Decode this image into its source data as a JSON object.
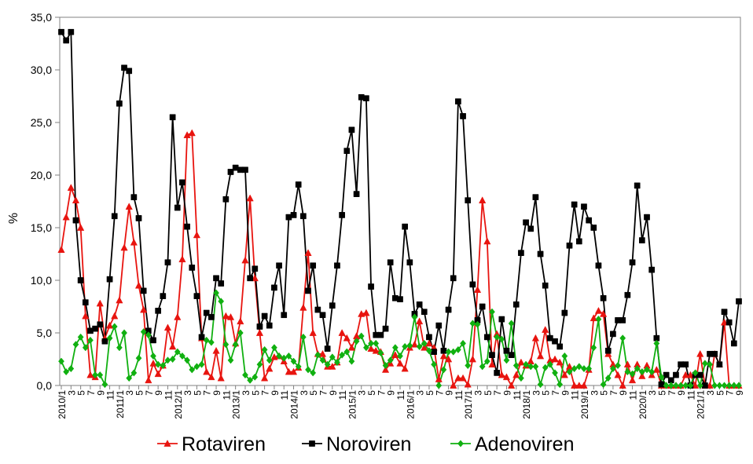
{
  "chart_data": {
    "type": "line",
    "ylabel": "%",
    "categories": [
      "2010/1",
      null,
      "3",
      null,
      "5",
      null,
      "7",
      null,
      "9",
      null,
      "11",
      null,
      "2011/1",
      null,
      "3",
      null,
      "5",
      null,
      "7",
      null,
      "9",
      null,
      "11",
      null,
      "2012/1",
      null,
      "3",
      null,
      "5",
      null,
      "7",
      null,
      "9",
      null,
      "11",
      null,
      "2013/1",
      null,
      "3",
      null,
      "5",
      null,
      "7",
      null,
      "9",
      null,
      "11",
      null,
      "2014/1",
      null,
      "3",
      null,
      "5",
      null,
      "7",
      null,
      "9",
      null,
      "11",
      null,
      "2015/1",
      null,
      "3",
      null,
      "5",
      null,
      "7",
      null,
      "9",
      null,
      "11",
      null,
      "2016/1",
      null,
      "3",
      null,
      "5",
      null,
      "7",
      null,
      "9",
      null,
      "11",
      null,
      "2017/1",
      null,
      "3",
      null,
      "5",
      null,
      "7",
      null,
      "9",
      null,
      "11",
      null,
      "2018/1",
      null,
      "3",
      null,
      "5",
      null,
      "7",
      null,
      "9",
      null,
      "11",
      null,
      "2019/1",
      null,
      "3",
      null,
      "5",
      null,
      "7",
      null,
      "9",
      null,
      "11",
      null,
      "2020/1",
      null,
      "3",
      null,
      "5",
      null,
      "7",
      null,
      "9",
      null,
      "11",
      null,
      "2021/1",
      null,
      "3",
      null,
      "5",
      null,
      "7",
      null,
      "9"
    ],
    "series": [
      {
        "name": "Rotaviren",
        "color": "#e8140f",
        "marker": "triangle",
        "values": [
          12.9,
          16,
          18.8,
          17.6,
          15,
          6.6,
          1,
          0.8,
          7.8,
          4.5,
          5.7,
          6.6,
          8.1,
          13.1,
          17,
          13.6,
          9.5,
          7.2,
          0.5,
          2.1,
          1.1,
          1.9,
          5.5,
          3.7,
          6.5,
          12,
          23.8,
          24,
          14.3,
          4.5,
          1.3,
          0.8,
          3.3,
          0.7,
          6.6,
          6.5,
          4,
          6.1,
          11.9,
          17.8,
          10.2,
          5,
          0.7,
          1.6,
          2.7,
          2.8,
          2.3,
          1.3,
          1.3,
          1.7,
          7.4,
          12.6,
          5,
          3,
          3,
          1.8,
          1.8,
          2.2,
          5,
          4.5,
          3.6,
          4.7,
          6.8,
          6.9,
          3.5,
          3.3,
          3.2,
          1.5,
          2.1,
          2.9,
          2.1,
          1.6,
          3.6,
          3.9,
          6.1,
          3.6,
          4,
          3.6,
          0.6,
          2.8,
          2.5,
          0,
          0.7,
          0.7,
          0.1,
          2.5,
          9.1,
          17.6,
          13.7,
          2,
          4.9,
          1,
          0.8,
          0,
          1,
          2.2,
          1.9,
          2.3,
          4.5,
          2.8,
          5.3,
          2.4,
          2.5,
          2.2,
          1,
          1.8,
          0,
          0,
          0,
          1.5,
          6.4,
          7.1,
          6.8,
          3,
          2,
          1,
          0,
          2,
          0.5,
          2,
          0.9,
          1.9,
          1,
          1.5,
          0,
          0,
          0,
          0,
          0,
          1,
          1,
          0,
          3,
          0,
          0,
          3,
          2,
          6,
          0,
          0,
          0
        ]
      },
      {
        "name": "Noroviren",
        "color": "#000000",
        "marker": "square",
        "values": [
          33.6,
          32.8,
          33.6,
          15.7,
          10,
          7.9,
          5.2,
          5.4,
          5.8,
          4.2,
          10.1,
          16.1,
          26.8,
          30.2,
          29.9,
          17.9,
          15.9,
          9,
          5.2,
          4.3,
          7.1,
          8.5,
          11.7,
          25.5,
          16.9,
          19.3,
          15.1,
          11.2,
          8.5,
          4.6,
          6.9,
          6.5,
          10.2,
          9.7,
          17.7,
          20.3,
          20.7,
          20.5,
          20.5,
          10.2,
          11.1,
          5.6,
          6.6,
          5.7,
          9.3,
          11.4,
          6.7,
          16,
          16.2,
          19.1,
          16.1,
          9,
          11.4,
          7.2,
          6.7,
          3.5,
          7.6,
          11.4,
          16.2,
          22.3,
          24.3,
          18.2,
          27.4,
          27.3,
          9.4,
          4.8,
          4.8,
          5.4,
          11.7,
          8.3,
          8.2,
          15.1,
          11.7,
          6.8,
          7.7,
          7,
          4.6,
          3.2,
          5.7,
          3.3,
          7.2,
          10.2,
          27,
          25.6,
          17.6,
          9.6,
          6.2,
          7.5,
          4.6,
          2.9,
          1.2,
          6.3,
          3.3,
          2.9,
          7.7,
          12.6,
          15.5,
          14.9,
          17.9,
          12.5,
          9.5,
          4.5,
          4.2,
          3.7,
          6.9,
          13.3,
          17.2,
          13.7,
          17,
          15.7,
          15,
          11.4,
          8.3,
          3.3,
          4.9,
          6.2,
          6.2,
          8.6,
          11.7,
          19,
          13.8,
          16,
          11,
          4.5,
          0.1,
          1,
          0.5,
          1,
          2,
          2,
          0,
          1,
          1,
          0,
          3,
          3,
          2,
          7,
          6,
          4,
          8
        ]
      },
      {
        "name": "Adenoviren",
        "color": "#10b010",
        "marker": "diamond",
        "values": [
          2.3,
          1.3,
          1.6,
          3.9,
          4.6,
          3.6,
          4.3,
          1,
          1,
          0.1,
          4.5,
          5.6,
          3.6,
          5,
          0.7,
          1.2,
          2.6,
          5.1,
          4.8,
          2.8,
          2,
          1.9,
          2.4,
          2.5,
          3.2,
          2.8,
          2.4,
          1.5,
          1.8,
          2,
          4.3,
          4.1,
          8.8,
          8,
          3.9,
          2.4,
          3.9,
          5,
          1,
          0.5,
          0.8,
          2,
          3.4,
          2.4,
          3.6,
          2.8,
          2.6,
          2.8,
          2.3,
          1.8,
          4.6,
          1.5,
          1.2,
          2.9,
          2.4,
          2,
          2.7,
          2.2,
          2.9,
          3.2,
          2.3,
          4.2,
          4.7,
          3.6,
          4,
          4,
          3.1,
          1.9,
          2.4,
          3.6,
          2.8,
          3.7,
          3.8,
          6.5,
          3.7,
          4,
          3.3,
          2,
          0,
          1.5,
          3.2,
          3.2,
          3.4,
          4,
          1.9,
          5.9,
          5.8,
          1.8,
          2.3,
          7,
          4.6,
          4.4,
          2.4,
          5.9,
          1.9,
          0.7,
          2,
          1.8,
          1.8,
          0.1,
          1.7,
          2,
          1.2,
          0.1,
          2.8,
          1.3,
          1.6,
          1.8,
          1.6,
          1.6,
          3.6,
          6.3,
          0.1,
          0.7,
          1.6,
          1.9,
          4.5,
          1.3,
          1.1,
          1.6,
          1.3,
          1.5,
          1.3,
          4,
          0.8,
          0,
          0,
          0,
          0,
          0,
          0,
          1.2,
          0,
          2.1,
          2,
          0,
          0,
          0,
          0,
          0,
          0
        ]
      }
    ],
    "ylim": [
      0,
      35
    ],
    "yticks": [
      {
        "value": 0,
        "label": "0,0"
      },
      {
        "value": 5,
        "label": "5,0"
      },
      {
        "value": 10,
        "label": "10,0"
      },
      {
        "value": 15,
        "label": "15,0"
      },
      {
        "value": 20,
        "label": "20,0"
      },
      {
        "value": 25,
        "label": "25,0"
      },
      {
        "value": 30,
        "label": "30,0"
      },
      {
        "value": 35,
        "label": "35,0"
      }
    ],
    "grid": false,
    "legend": "bottom"
  }
}
